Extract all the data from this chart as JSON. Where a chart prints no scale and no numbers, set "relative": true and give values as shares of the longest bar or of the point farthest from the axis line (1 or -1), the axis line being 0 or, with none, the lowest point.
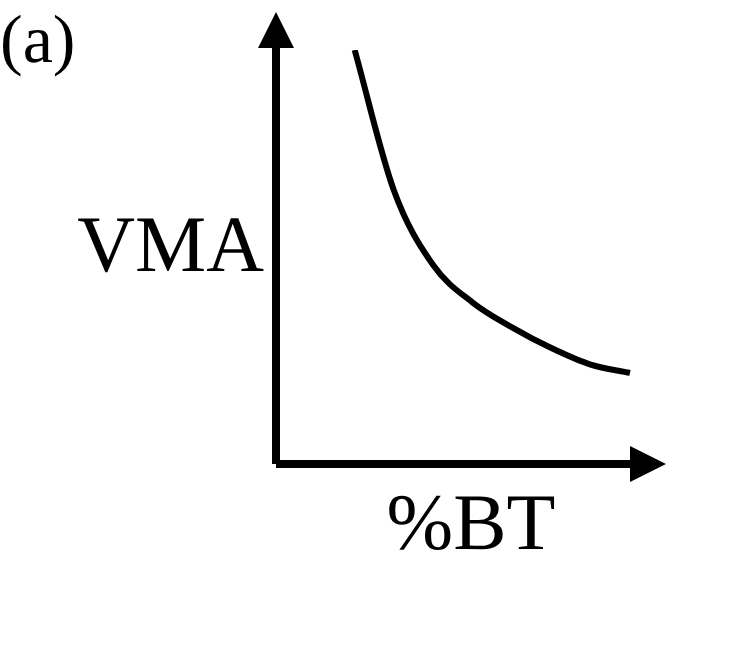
{
  "chart_data": {
    "type": "line",
    "relative": true,
    "annotations": [
      "(a)"
    ],
    "xlabel": "%BT",
    "ylabel": "VMA",
    "categories": [
      null,
      null,
      null,
      null,
      null,
      null,
      null,
      null,
      null,
      null
    ],
    "marker": "none",
    "series": [
      {
        "color": "#000000",
        "values": [
          null,
          null,
          1,
          0.66,
          0.48,
          0.39,
          0.33,
          0.28,
          0.24,
          0.22
        ]
      }
    ]
  }
}
